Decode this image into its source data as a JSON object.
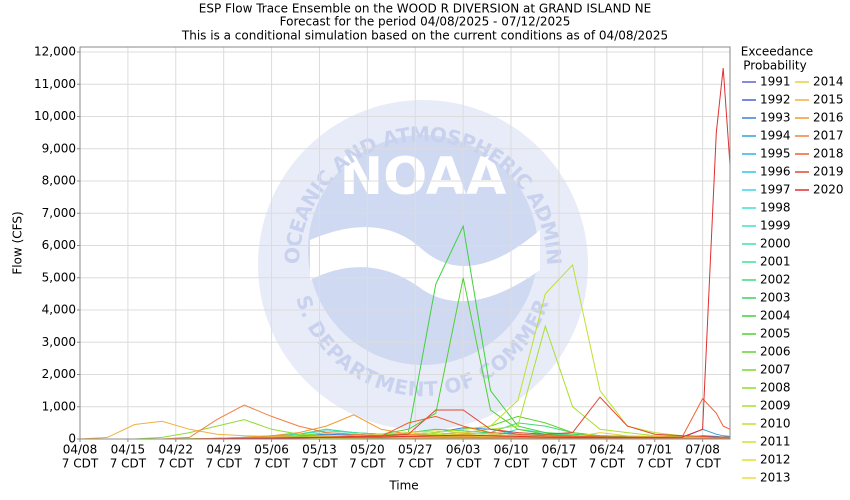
{
  "chart_data": {
    "type": "line",
    "title": [
      "ESP Flow Trace Ensemble on the WOOD R DIVERSION at GRAND ISLAND NE",
      "Forecast for the period 04/08/2025 - 07/12/2025",
      "This is a conditional simulation based on the current conditions as of 04/08/2025"
    ],
    "x_label": "Time",
    "y_label": "Flow (CFS)",
    "legend_title": [
      "Exceedance",
      "Probability"
    ],
    "watermark": {
      "center": "NOAA",
      "ring_top": "NATIONAL OCEANIC AND ATMOSPHERIC ADMINISTRATION",
      "ring_bottom": "U.S. DEPARTMENT OF COMMERCE"
    },
    "grid": true,
    "xlim": [
      "04/08",
      "07/12"
    ],
    "xticks": [
      {
        "value": "04/08",
        "label": "04/08",
        "sublabel": "7 CDT"
      },
      {
        "value": "04/15",
        "label": "04/15",
        "sublabel": "7 CDT"
      },
      {
        "value": "04/22",
        "label": "04/22",
        "sublabel": "7 CDT"
      },
      {
        "value": "04/29",
        "label": "04/29",
        "sublabel": "7 CDT"
      },
      {
        "value": "05/06",
        "label": "05/06",
        "sublabel": "7 CDT"
      },
      {
        "value": "05/13",
        "label": "05/13",
        "sublabel": "7 CDT"
      },
      {
        "value": "05/20",
        "label": "05/20",
        "sublabel": "7 CDT"
      },
      {
        "value": "05/27",
        "label": "05/27",
        "sublabel": "7 CDT"
      },
      {
        "value": "06/03",
        "label": "06/03",
        "sublabel": "7 CDT"
      },
      {
        "value": "06/10",
        "label": "06/10",
        "sublabel": "7 CDT"
      },
      {
        "value": "06/17",
        "label": "06/17",
        "sublabel": "7 CDT"
      },
      {
        "value": "06/24",
        "label": "06/24",
        "sublabel": "7 CDT"
      },
      {
        "value": "07/01",
        "label": "07/01",
        "sublabel": "7 CDT"
      },
      {
        "value": "07/08",
        "label": "07/08",
        "sublabel": "7 CDT"
      }
    ],
    "ylim": [
      0,
      12000
    ],
    "yticks": [
      0,
      {
        "value": 1000,
        "label": "1,000"
      },
      {
        "value": 2000,
        "label": "2,000"
      },
      {
        "value": 3000,
        "label": "3,000"
      },
      {
        "value": 4000,
        "label": "4,000"
      },
      {
        "value": 5000,
        "label": "5,000"
      },
      {
        "value": 6000,
        "label": "6,000"
      },
      {
        "value": 7000,
        "label": "7,000"
      },
      {
        "value": 8000,
        "label": "8,000"
      },
      {
        "value": 9000,
        "label": "9,000"
      },
      {
        "value": 10000,
        "label": "10,000"
      },
      {
        "value": 11000,
        "label": "11,000"
      },
      {
        "value": 12000,
        "label": "12,000"
      }
    ],
    "x": [
      "04/08",
      "04/12",
      "04/16",
      "04/20",
      "04/24",
      "04/28",
      "05/02",
      "05/06",
      "05/10",
      "05/14",
      "05/18",
      "05/22",
      "05/26",
      "05/30",
      "06/03",
      "06/07",
      "06/11",
      "06/15",
      "06/19",
      "06/23",
      "06/27",
      "07/01",
      "07/05",
      "07/08",
      "07/10",
      "07/11",
      "07/12"
    ],
    "series": [
      {
        "name": "1991",
        "color": "#6060d0",
        "values": [
          0,
          0,
          0,
          0,
          0,
          10,
          20,
          30,
          40,
          30,
          20,
          30,
          40,
          60,
          80,
          60,
          40,
          30,
          20,
          20,
          20,
          20,
          20,
          20,
          20,
          20,
          20
        ]
      },
      {
        "name": "1992",
        "color": "#4a62d4",
        "values": [
          0,
          0,
          0,
          0,
          0,
          0,
          10,
          20,
          30,
          40,
          60,
          80,
          120,
          150,
          200,
          150,
          100,
          80,
          60,
          50,
          40,
          40,
          30,
          30,
          30,
          30,
          30
        ]
      },
      {
        "name": "1993",
        "color": "#3a80d8",
        "values": [
          0,
          0,
          0,
          0,
          0,
          10,
          30,
          60,
          100,
          150,
          120,
          100,
          150,
          200,
          350,
          300,
          150,
          100,
          80,
          60,
          50,
          40,
          40,
          100,
          80,
          60,
          50
        ]
      },
      {
        "name": "1994",
        "color": "#30a0d8",
        "values": [
          0,
          0,
          0,
          0,
          0,
          0,
          10,
          20,
          30,
          30,
          40,
          50,
          60,
          80,
          100,
          90,
          80,
          70,
          60,
          50,
          40,
          40,
          40,
          300,
          150,
          100,
          80
        ]
      },
      {
        "name": "1995",
        "color": "#30b4e0",
        "values": [
          0,
          0,
          0,
          0,
          10,
          20,
          50,
          100,
          150,
          300,
          200,
          150,
          100,
          80,
          60,
          50,
          40,
          40,
          30,
          30,
          30,
          30,
          30,
          30,
          30,
          30,
          30
        ]
      },
      {
        "name": "1996",
        "color": "#30c4e4",
        "values": [
          0,
          0,
          0,
          0,
          0,
          10,
          20,
          40,
          80,
          60,
          50,
          40,
          50,
          60,
          70,
          60,
          50,
          40,
          40,
          30,
          30,
          30,
          30,
          30,
          30,
          30,
          30
        ]
      },
      {
        "name": "1997",
        "color": "#40d4e4",
        "values": [
          0,
          0,
          0,
          0,
          0,
          0,
          10,
          20,
          30,
          40,
          50,
          60,
          70,
          80,
          90,
          80,
          70,
          60,
          50,
          50,
          40,
          40,
          40,
          40,
          40,
          40,
          40
        ]
      },
      {
        "name": "1998",
        "color": "#40e0d8",
        "values": [
          0,
          0,
          0,
          0,
          0,
          20,
          50,
          80,
          150,
          250,
          200,
          150,
          100,
          80,
          60,
          50,
          40,
          40,
          30,
          30,
          30,
          30,
          30,
          30,
          30,
          30,
          30
        ]
      },
      {
        "name": "1999",
        "color": "#40e0c4",
        "values": [
          0,
          0,
          0,
          0,
          0,
          10,
          20,
          30,
          40,
          50,
          60,
          80,
          100,
          120,
          100,
          80,
          300,
          200,
          100,
          80,
          60,
          50,
          40,
          40,
          30,
          30,
          30
        ]
      },
      {
        "name": "2000",
        "color": "#40e0ac",
        "values": [
          0,
          0,
          0,
          0,
          0,
          0,
          10,
          20,
          30,
          40,
          50,
          60,
          70,
          80,
          90,
          100,
          120,
          150,
          100,
          80,
          60,
          50,
          40,
          40,
          40,
          40,
          40
        ]
      },
      {
        "name": "2001",
        "color": "#40e094",
        "values": [
          0,
          0,
          0,
          0,
          0,
          20,
          40,
          80,
          150,
          300,
          200,
          150,
          120,
          100,
          80,
          70,
          60,
          50,
          40,
          40,
          30,
          30,
          30,
          30,
          30,
          30,
          30
        ]
      },
      {
        "name": "2002",
        "color": "#40d87c",
        "values": [
          0,
          0,
          0,
          0,
          0,
          0,
          10,
          20,
          30,
          40,
          50,
          60,
          80,
          100,
          150,
          200,
          500,
          400,
          200,
          100,
          80,
          60,
          50,
          40,
          40,
          40,
          40
        ]
      },
      {
        "name": "2003",
        "color": "#40d064",
        "values": [
          0,
          0,
          0,
          0,
          0,
          10,
          20,
          30,
          40,
          50,
          100,
          150,
          200,
          300,
          250,
          200,
          150,
          100,
          80,
          60,
          50,
          40,
          40,
          30,
          30,
          30,
          30
        ]
      },
      {
        "name": "2004",
        "color": "#40d040",
        "values": [
          0,
          0,
          0,
          0,
          0,
          20,
          40,
          60,
          80,
          100,
          80,
          100,
          200,
          4800,
          6600,
          1500,
          400,
          200,
          150,
          100,
          80,
          60,
          40,
          30,
          30,
          20,
          20
        ]
      },
      {
        "name": "2005",
        "color": "#50d030",
        "values": [
          0,
          0,
          0,
          0,
          0,
          10,
          20,
          40,
          60,
          80,
          100,
          150,
          300,
          800,
          5000,
          900,
          300,
          150,
          100,
          80,
          60,
          50,
          40,
          30,
          30,
          30,
          30
        ]
      },
      {
        "name": "2006",
        "color": "#64d030",
        "values": [
          0,
          0,
          0,
          0,
          0,
          10,
          20,
          30,
          40,
          60,
          80,
          100,
          150,
          200,
          300,
          400,
          700,
          500,
          200,
          100,
          80,
          60,
          50,
          40,
          40,
          40,
          40
        ]
      },
      {
        "name": "2007",
        "color": "#78d830",
        "values": [
          0,
          0,
          0,
          0,
          0,
          10,
          30,
          60,
          100,
          200,
          150,
          100,
          80,
          70,
          60,
          50,
          40,
          40,
          30,
          30,
          30,
          30,
          30,
          30,
          30,
          30,
          30
        ]
      },
      {
        "name": "2008",
        "color": "#90dc30",
        "values": [
          0,
          0,
          0,
          50,
          200,
          400,
          600,
          300,
          150,
          100,
          80,
          70,
          60,
          50,
          40,
          30,
          30,
          20,
          20,
          20,
          20,
          20,
          20,
          20,
          20,
          20,
          20
        ]
      },
      {
        "name": "2009",
        "color": "#a8e030",
        "values": [
          0,
          0,
          0,
          0,
          10,
          20,
          30,
          40,
          50,
          60,
          80,
          100,
          120,
          150,
          200,
          300,
          400,
          3500,
          1000,
          300,
          200,
          100,
          80,
          60,
          50,
          50,
          50
        ]
      },
      {
        "name": "2010",
        "color": "#c0e030",
        "values": [
          0,
          0,
          0,
          0,
          10,
          20,
          30,
          40,
          50,
          60,
          80,
          100,
          150,
          200,
          300,
          400,
          1200,
          4500,
          5400,
          1500,
          400,
          200,
          100,
          60,
          40,
          40,
          40
        ]
      },
      {
        "name": "2011",
        "color": "#d4e030",
        "values": [
          0,
          0,
          0,
          0,
          0,
          10,
          20,
          30,
          40,
          50,
          60,
          80,
          100,
          120,
          150,
          100,
          80,
          60,
          50,
          40,
          40,
          40,
          40,
          40,
          40,
          40,
          40
        ]
      },
      {
        "name": "2012",
        "color": "#e0e030",
        "values": [
          0,
          0,
          0,
          0,
          0,
          0,
          10,
          20,
          20,
          30,
          30,
          40,
          40,
          50,
          50,
          40,
          40,
          30,
          30,
          30,
          30,
          20,
          20,
          20,
          20,
          20,
          20
        ]
      },
      {
        "name": "2013",
        "color": "#e8e040",
        "values": [
          0,
          0,
          0,
          0,
          0,
          10,
          20,
          30,
          40,
          50,
          60,
          70,
          80,
          90,
          100,
          90,
          80,
          70,
          60,
          50,
          50,
          40,
          40,
          40,
          40,
          40,
          40
        ]
      },
      {
        "name": "2014",
        "color": "#e8d040",
        "values": [
          0,
          0,
          0,
          0,
          0,
          10,
          20,
          40,
          60,
          80,
          100,
          150,
          200,
          250,
          200,
          150,
          100,
          80,
          60,
          200,
          100,
          80,
          60,
          50,
          50,
          50,
          50
        ]
      },
      {
        "name": "2015",
        "color": "#f0b040",
        "values": [
          0,
          50,
          450,
          550,
          300,
          150,
          100,
          80,
          60,
          50,
          40,
          40,
          30,
          30,
          30,
          30,
          30,
          30,
          30,
          30,
          30,
          20,
          20,
          20,
          20,
          20,
          20
        ]
      },
      {
        "name": "2016",
        "color": "#f09830",
        "values": [
          0,
          0,
          0,
          0,
          0,
          20,
          50,
          100,
          200,
          400,
          750,
          300,
          150,
          100,
          80,
          60,
          50,
          40,
          40,
          30,
          30,
          30,
          30,
          30,
          30,
          30,
          30
        ]
      },
      {
        "name": "2017",
        "color": "#f08040",
        "values": [
          0,
          0,
          0,
          0,
          50,
          600,
          1050,
          700,
          400,
          200,
          150,
          100,
          80,
          60,
          50,
          40,
          40,
          40,
          30,
          30,
          30,
          30,
          30,
          20,
          20,
          20,
          20
        ]
      },
      {
        "name": "2018",
        "color": "#f06030",
        "values": [
          0,
          0,
          0,
          0,
          0,
          10,
          20,
          30,
          40,
          50,
          60,
          80,
          500,
          700,
          400,
          200,
          150,
          100,
          80,
          70,
          60,
          50,
          60,
          1250,
          800,
          400,
          300
        ]
      },
      {
        "name": "2019",
        "color": "#e04830",
        "values": [
          0,
          0,
          0,
          0,
          0,
          10,
          20,
          30,
          40,
          60,
          80,
          100,
          150,
          900,
          900,
          300,
          200,
          150,
          200,
          1300,
          400,
          150,
          100,
          80,
          60,
          60,
          60
        ]
      },
      {
        "name": "2020",
        "color": "#e03030",
        "values": [
          0,
          0,
          0,
          0,
          0,
          10,
          20,
          30,
          40,
          50,
          60,
          60,
          80,
          100,
          120,
          100,
          80,
          60,
          50,
          50,
          50,
          50,
          60,
          300,
          9500,
          11500,
          8500
        ]
      }
    ]
  }
}
